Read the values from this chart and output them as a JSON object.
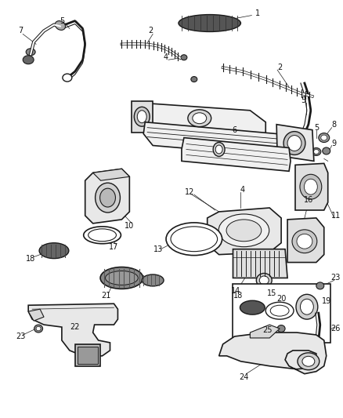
{
  "bg_color": "#ffffff",
  "line_color": "#1a1a1a",
  "label_color": "#111111",
  "figsize": [
    4.38,
    5.33
  ],
  "dpi": 100,
  "lw": 1.0
}
